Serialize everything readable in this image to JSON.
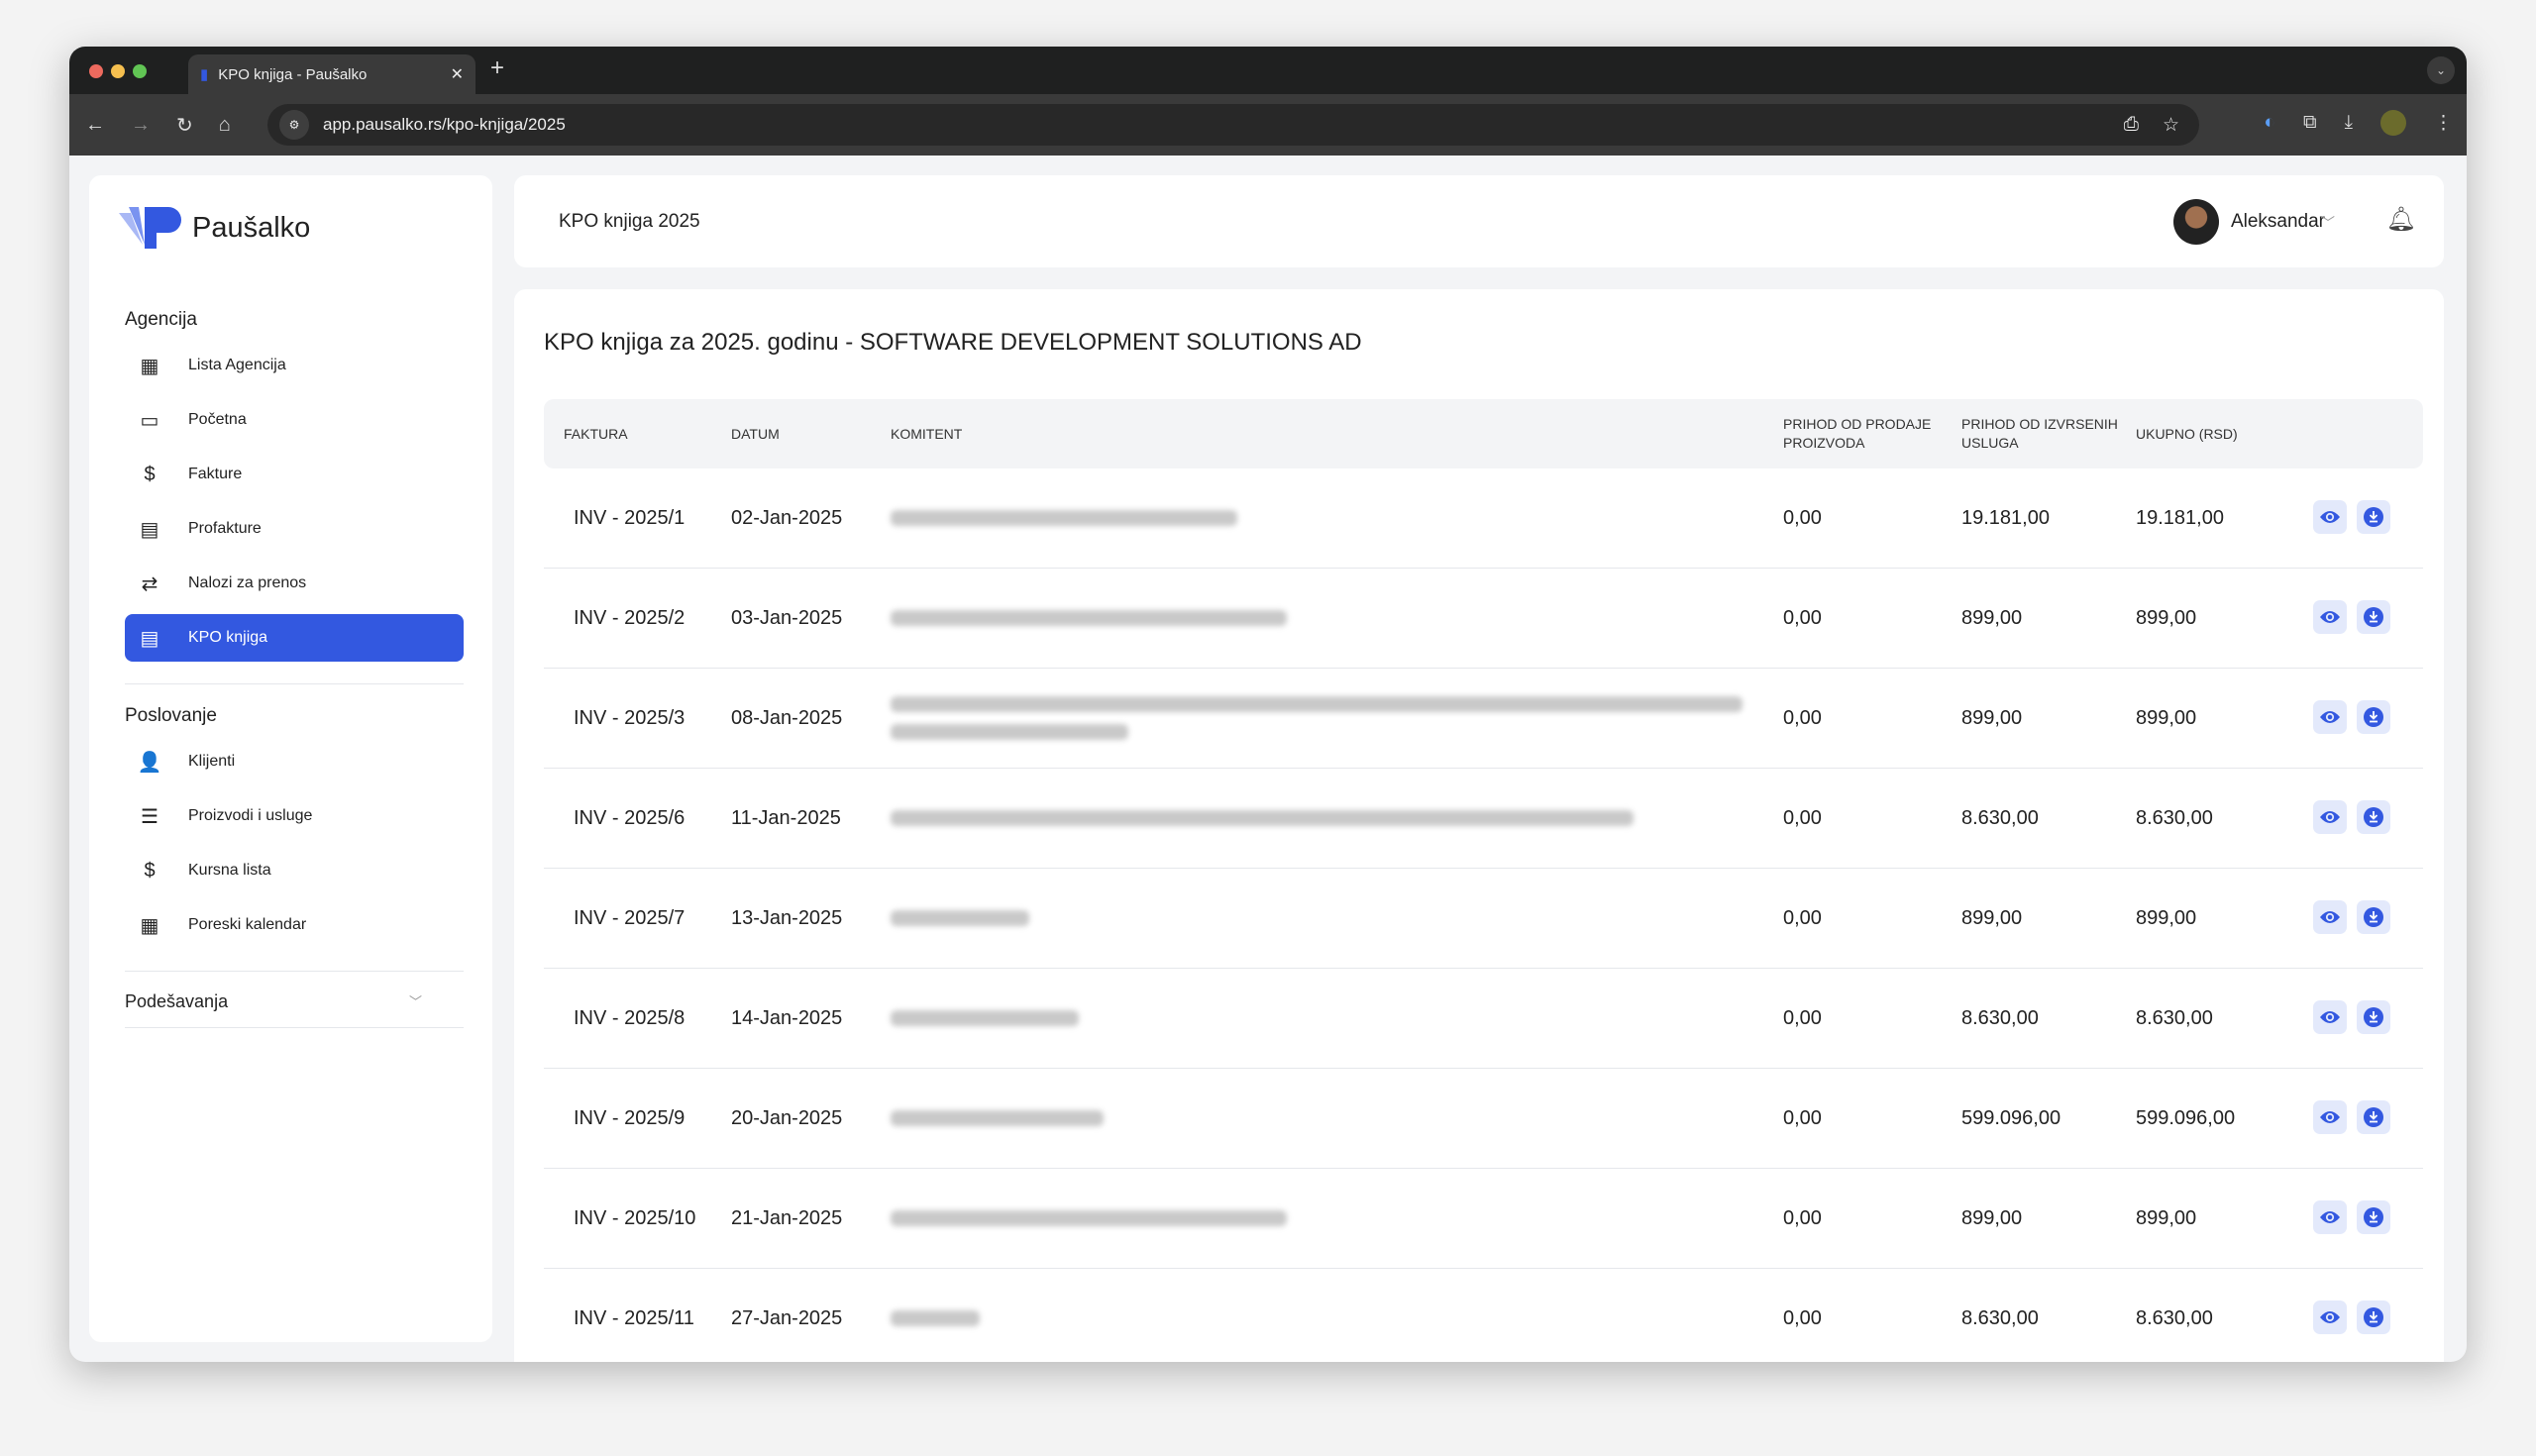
{
  "browser": {
    "tab_title": "KPO knjiga - Paušalko",
    "url": "app.pausalko.rs/kpo-knjiga/2025"
  },
  "brand": {
    "name": "Paušalko",
    "accent": "#3358e0"
  },
  "sidebar": {
    "section1": "Agencija",
    "items1": [
      {
        "label": "Lista Agencija",
        "icon": "building-icon"
      },
      {
        "label": "Početna",
        "icon": "store-icon"
      },
      {
        "label": "Fakture",
        "icon": "invoice-dollar-icon"
      },
      {
        "label": "Profakture",
        "icon": "file-icon"
      },
      {
        "label": "Nalozi za prenos",
        "icon": "money-transfer-icon"
      },
      {
        "label": "KPO knjiga",
        "icon": "book-icon",
        "active": true
      }
    ],
    "section2": "Poslovanje",
    "items2": [
      {
        "label": "Klijenti",
        "icon": "user-tie-icon"
      },
      {
        "label": "Proizvodi i usluge",
        "icon": "list-icon"
      },
      {
        "label": "Kursna lista",
        "icon": "hand-dollar-icon"
      },
      {
        "label": "Poreski kalendar",
        "icon": "calendar-icon"
      }
    ],
    "settings": "Podešavanja"
  },
  "header": {
    "title": "KPO knjiga 2025",
    "user": "Aleksandar"
  },
  "main": {
    "title": "KPO knjiga za 2025. godinu - SOFTWARE DEVELOPMENT SOLUTIONS AD",
    "columns": [
      "FAKTURA",
      "DATUM",
      "KOMITENT",
      "PRIHOD OD PRODAJE PROIZVODA",
      "PRIHOD OD IZVRSENIH USLUGA",
      "UKUPNO (RSD)"
    ],
    "rows": [
      {
        "faktura": "INV - 2025/1",
        "datum": "02-Jan-2025",
        "proizvoda": "0,00",
        "usluga": "19.181,00",
        "ukupno": "19.181,00"
      },
      {
        "faktura": "INV - 2025/2",
        "datum": "03-Jan-2025",
        "proizvoda": "0,00",
        "usluga": "899,00",
        "ukupno": "899,00"
      },
      {
        "faktura": "INV - 2025/3",
        "datum": "08-Jan-2025",
        "proizvoda": "0,00",
        "usluga": "899,00",
        "ukupno": "899,00"
      },
      {
        "faktura": "INV - 2025/6",
        "datum": "11-Jan-2025",
        "proizvoda": "0,00",
        "usluga": "8.630,00",
        "ukupno": "8.630,00"
      },
      {
        "faktura": "INV - 2025/7",
        "datum": "13-Jan-2025",
        "proizvoda": "0,00",
        "usluga": "899,00",
        "ukupno": "899,00"
      },
      {
        "faktura": "INV - 2025/8",
        "datum": "14-Jan-2025",
        "proizvoda": "0,00",
        "usluga": "8.630,00",
        "ukupno": "8.630,00"
      },
      {
        "faktura": "INV - 2025/9",
        "datum": "20-Jan-2025",
        "proizvoda": "0,00",
        "usluga": "599.096,00",
        "ukupno": "599.096,00"
      },
      {
        "faktura": "INV - 2025/10",
        "datum": "21-Jan-2025",
        "proizvoda": "0,00",
        "usluga": "899,00",
        "ukupno": "899,00"
      },
      {
        "faktura": "INV - 2025/11",
        "datum": "27-Jan-2025",
        "proizvoda": "0,00",
        "usluga": "8.630,00",
        "ukupno": "8.630,00"
      }
    ]
  }
}
